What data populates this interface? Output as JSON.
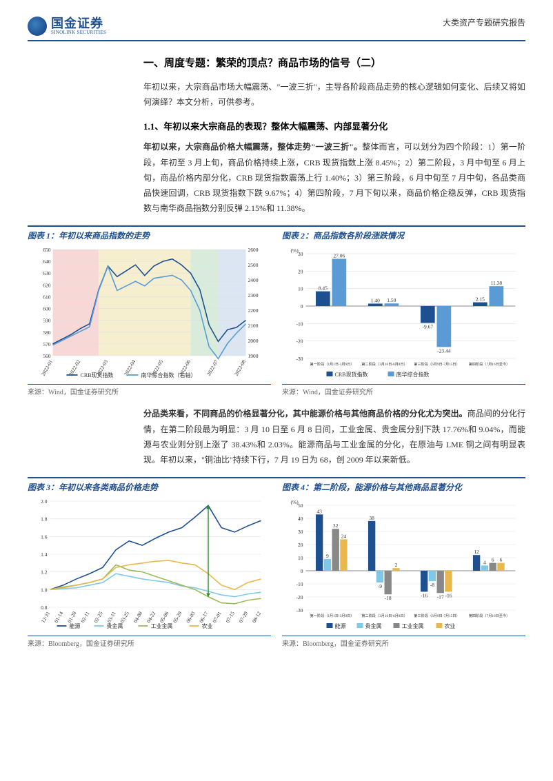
{
  "header": {
    "brand_cn": "国金证券",
    "brand_en": "SINOLINK SECURITIES",
    "doc_type": "大类资产专题研究报告"
  },
  "section": {
    "h1": "一、周度专题：繁荣的顶点？商品市场的信号（二）",
    "intro": "年初以来，大宗商品市场大幅震荡、\"一波三折\"，主导各阶段商品走势的核心逻辑如何变化、后续又将如何演绎？本文分析，可供参考。",
    "h2_11": "1.1、年初以来大宗商品的表现？整体大幅震荡、内部显著分化",
    "p11_lead": "年初以来，大宗商品价格大幅震荡，整体走势\"一波三折\"。",
    "p11_body": "整体而言，可以划分为四个阶段：1）第一阶段，年初至 3 月上旬，商品价格持续上涨，CRB 现货指数上涨 8.45%；2）第二阶段，3 月中旬至 6 月上旬，商品价格内部分化，CRB 现货指数震荡上行 1.40%；3）第三阶段，6 月中旬至 7 月中旬，各品类商品快速回调，CRB 现货指数下跌 9.67%；4）第四阶段，7 月下旬以来，商品价格企稳反弹，CRB 现货指数与南华商品指数分别反弹 2.15%和 11.38%。",
    "p12_lead": "分品类来看，不同商品的价格显著分化，其中能源价格与其他商品价格的分化尤为突出。",
    "p12_body": "商品间的分化行情，在第二阶段最为明显：3 月 10 日至 6 月 8 日间，工业金属、贵金属分别下跌 17.76%和 9.04%，而能源与农业则分别上涨了 38.43%和 2.03%。能源商品与工业金属的分化，在原油与 LME 铜之间有明显表现。年初以来，\"铜油比\"持续下行，7 月 19 日为 68，创 2009 年以来新低。"
  },
  "chart1": {
    "title": "图表 1：年初以来商品指数的走势",
    "type": "line-dual-axis",
    "x_labels": [
      "2022-01",
      "2022-02",
      "2022-03",
      "2022-04",
      "2022-05",
      "2022-06",
      "2022-07",
      "2022-08"
    ],
    "left_axis": {
      "min": 560,
      "max": 650,
      "step": 10
    },
    "right_axis": {
      "min": 1900,
      "max": 2600,
      "step": 100
    },
    "series": [
      {
        "name": "CRB现货指数",
        "color": "#1e4f8f",
        "axis": "left",
        "data": [
          570,
          574,
          578,
          583,
          587,
          616,
          636,
          627,
          632,
          637,
          628,
          636,
          640,
          642,
          637,
          630,
          616,
          586,
          572,
          582,
          584,
          590
        ]
      },
      {
        "name": "南华综合指数（右轴）",
        "color": "#5a9bd5",
        "axis": "right",
        "data": [
          1970,
          2000,
          2030,
          2060,
          2090,
          2330,
          2490,
          2330,
          2360,
          2390,
          2360,
          2410,
          2420,
          2430,
          2400,
          2330,
          2200,
          1960,
          1880,
          1980,
          2050,
          2110
        ]
      }
    ],
    "bg_bands": [
      {
        "from": 0,
        "to": 5,
        "color": "#f8d7d7"
      },
      {
        "from": 5,
        "to": 15,
        "color": "#f5efd0"
      },
      {
        "from": 15,
        "to": 18,
        "color": "#d9ecdb"
      },
      {
        "from": 18,
        "to": 21,
        "color": "#dce6f2"
      }
    ],
    "legend": [
      "CRB现货指数",
      "南华综合指数（右轴）"
    ],
    "legend_colors": [
      "#1e4f8f",
      "#5a9bd5"
    ],
    "source": "来源：Wind，国金证券研究所"
  },
  "chart2": {
    "title": "图表 2：商品指数各阶段涨跌情况",
    "type": "grouped-bar",
    "y_unit": "(%)",
    "y_axis": {
      "min": -30,
      "max": 30,
      "step": 10
    },
    "categories": [
      "第一阶段（1月1日-3月9日）",
      "第二阶段（3月10日-6月8日）",
      "第三阶段（6月9日-7月15日）",
      "第四阶段（7月16日至今）"
    ],
    "groups": [
      {
        "name": "CRB现货指数",
        "color": "#1e4f8f",
        "values": [
          8.45,
          1.4,
          -9.67,
          2.15
        ]
      },
      {
        "name": "南华综合指数",
        "color": "#5a9bd5",
        "values": [
          27.06,
          1.5,
          -23.44,
          11.38
        ]
      }
    ],
    "source": "来源：Wind，国金证券研究所"
  },
  "chart3": {
    "title": "图表 3：年初以来各类商品价格走势",
    "type": "line",
    "x_labels": [
      "12-31",
      "01-14",
      "01-28",
      "02-11",
      "02-25",
      "03-11",
      "03-25",
      "04-08",
      "04-22",
      "05-06",
      "05-20",
      "06-03",
      "06-17",
      "07-01",
      "07-15",
      "07-29",
      "08-12"
    ],
    "y_axis": {
      "min": 0.8,
      "max": 2.0,
      "step": 0.2
    },
    "series": [
      {
        "name": "能源",
        "color": "#1e4f8f",
        "data": [
          1.0,
          1.05,
          1.12,
          1.18,
          1.25,
          1.45,
          1.55,
          1.5,
          1.58,
          1.65,
          1.7,
          1.82,
          1.95,
          1.7,
          1.65,
          1.72,
          1.78
        ]
      },
      {
        "name": "贵金属",
        "color": "#7fc8e8",
        "data": [
          1.0,
          1.01,
          1.02,
          1.05,
          1.08,
          1.18,
          1.15,
          1.12,
          1.1,
          1.08,
          1.04,
          1.02,
          0.98,
          0.94,
          0.92,
          0.95,
          0.97
        ]
      },
      {
        "name": "工业金属",
        "color": "#9bbb59",
        "data": [
          1.0,
          1.03,
          1.05,
          1.08,
          1.12,
          1.28,
          1.22,
          1.2,
          1.15,
          1.1,
          1.05,
          1.0,
          0.92,
          0.85,
          0.84,
          0.88,
          0.9
        ]
      },
      {
        "name": "农业",
        "color": "#e8b84c",
        "data": [
          1.0,
          1.02,
          1.05,
          1.08,
          1.12,
          1.25,
          1.28,
          1.3,
          1.32,
          1.33,
          1.3,
          1.28,
          1.18,
          1.05,
          1.0,
          1.08,
          1.12
        ]
      }
    ],
    "arrow": {
      "x_index": 12,
      "y_top": 1.95,
      "y_bot": 0.92,
      "color": "#2e8b2e"
    },
    "source": "来源：Bloomberg，国金证券研究所"
  },
  "chart4": {
    "title": "图表 4：第二阶段，能源价格与其他商品显著分化",
    "type": "grouped-bar",
    "y_unit": "(%)",
    "y_axis": {
      "min": -30,
      "max": 50,
      "step": 10
    },
    "categories": [
      "第一阶段（1月1日-3月9日）",
      "第二阶段（3月10日-6月8日）",
      "第三阶段（6月9日-7月15日）",
      "第四阶段（7月16日至今）"
    ],
    "groups": [
      {
        "name": "能源",
        "color": "#1e4f8f",
        "values": [
          43,
          38,
          -16,
          12
        ]
      },
      {
        "name": "贵金属",
        "color": "#7fc8e8",
        "values": [
          9,
          -9,
          -8,
          4
        ]
      },
      {
        "name": "工业金属",
        "color": "#888888",
        "values": [
          32,
          -18,
          -17,
          6
        ]
      },
      {
        "name": "农业",
        "color": "#e8b84c",
        "values": [
          24,
          2,
          -16,
          6
        ]
      }
    ],
    "source": "来源：Bloomberg，国金证券研究所"
  },
  "chart_style": {
    "grid_color": "#e0e0e0",
    "axis_color": "#666666",
    "tick_fontsize": 7.5,
    "legend_fontsize": 8,
    "background": "#ffffff"
  }
}
